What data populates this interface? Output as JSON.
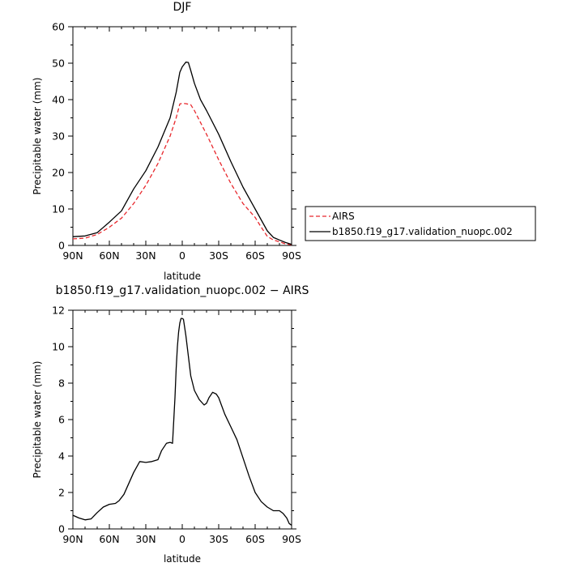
{
  "chart_data": [
    {
      "type": "line",
      "title": "DJF",
      "xlabel": "latitude",
      "ylabel": "Precipitable water (mm)",
      "xlim": [
        90,
        -90
      ],
      "ylim": [
        0,
        60
      ],
      "x_ticks": [
        90,
        60,
        30,
        0,
        -30,
        -60,
        -90
      ],
      "x_tick_labels": [
        "90N",
        "60N",
        "30N",
        "0",
        "30S",
        "60S",
        "90S"
      ],
      "y_ticks": [
        0,
        10,
        20,
        30,
        40,
        50,
        60
      ],
      "y_tick_labels": [
        "0",
        "10",
        "20",
        "30",
        "40",
        "50",
        "60"
      ],
      "legend_position": "outside-right",
      "series": [
        {
          "name": "AIRS",
          "color": "#e8282d",
          "dash": true,
          "x": [
            90,
            80,
            70,
            60,
            50,
            40,
            30,
            20,
            10,
            5,
            2,
            0,
            -3,
            -7,
            -10,
            -20,
            -30,
            -40,
            -50,
            -60,
            -65,
            -70,
            -75,
            -80,
            -85,
            -90
          ],
          "y": [
            1.8,
            2.0,
            3.0,
            5.0,
            7.5,
            11.5,
            16.5,
            22.5,
            30.0,
            35.0,
            38.8,
            39.0,
            38.9,
            38.6,
            37.0,
            30.5,
            23.5,
            17.0,
            11.5,
            7.7,
            5.0,
            2.5,
            1.5,
            1.0,
            0.4,
            0.2
          ]
        },
        {
          "name": "b1850.f19_g17.validation_nuopc.002",
          "color": "#000000",
          "dash": false,
          "x": [
            90,
            80,
            70,
            60,
            50,
            40,
            30,
            20,
            10,
            5,
            2,
            0,
            -3,
            -5,
            -7,
            -10,
            -15,
            -20,
            -30,
            -40,
            -50,
            -60,
            -65,
            -70,
            -75,
            -80,
            -85,
            -90
          ],
          "y": [
            2.4,
            2.6,
            3.5,
            6.4,
            9.5,
            15.5,
            20.5,
            27.0,
            35.0,
            42.0,
            47.5,
            49.0,
            50.3,
            50.2,
            48.0,
            44.5,
            40.0,
            37.0,
            30.5,
            23.0,
            16.0,
            10.0,
            7.0,
            4.0,
            2.2,
            1.5,
            0.8,
            0.3
          ]
        }
      ]
    },
    {
      "type": "line",
      "title": "b1850.f19_g17.validation_nuopc.002 − AIRS",
      "xlabel": "latitude",
      "ylabel": "Precipitable water (mm)",
      "xlim": [
        90,
        -90
      ],
      "ylim": [
        0,
        12
      ],
      "x_ticks": [
        90,
        60,
        30,
        0,
        -30,
        -60,
        -90
      ],
      "x_tick_labels": [
        "90N",
        "60N",
        "30N",
        "0",
        "30S",
        "60S",
        "90S"
      ],
      "y_ticks": [
        0,
        2,
        4,
        6,
        8,
        10,
        12
      ],
      "y_tick_labels": [
        "0",
        "2",
        "4",
        "6",
        "8",
        "10",
        "12"
      ],
      "series": [
        {
          "color": "#000000",
          "dash": false,
          "x": [
            90,
            85,
            80,
            75,
            70,
            65,
            60,
            55,
            52,
            48,
            44,
            40,
            35,
            30,
            25,
            20,
            17,
            15,
            13,
            10,
            8,
            6,
            5,
            4,
            3,
            2,
            1,
            0,
            -1,
            -3,
            -5,
            -7,
            -10,
            -14,
            -18,
            -20,
            -22,
            -25,
            -28,
            -30,
            -35,
            -40,
            -45,
            -50,
            -55,
            -60,
            -65,
            -70,
            -75,
            -80,
            -83,
            -86,
            -88,
            -90
          ],
          "y": [
            0.75,
            0.6,
            0.5,
            0.55,
            0.9,
            1.2,
            1.35,
            1.4,
            1.55,
            1.9,
            2.5,
            3.1,
            3.7,
            3.65,
            3.7,
            3.8,
            4.3,
            4.5,
            4.7,
            4.75,
            4.7,
            7.2,
            8.8,
            10.0,
            10.8,
            11.3,
            11.55,
            11.55,
            11.5,
            10.6,
            9.5,
            8.4,
            7.6,
            7.1,
            6.8,
            6.9,
            7.2,
            7.5,
            7.4,
            7.2,
            6.3,
            5.6,
            4.9,
            3.9,
            2.9,
            2.0,
            1.5,
            1.2,
            1.0,
            1.0,
            0.85,
            0.6,
            0.3,
            0.2
          ]
        }
      ]
    }
  ]
}
